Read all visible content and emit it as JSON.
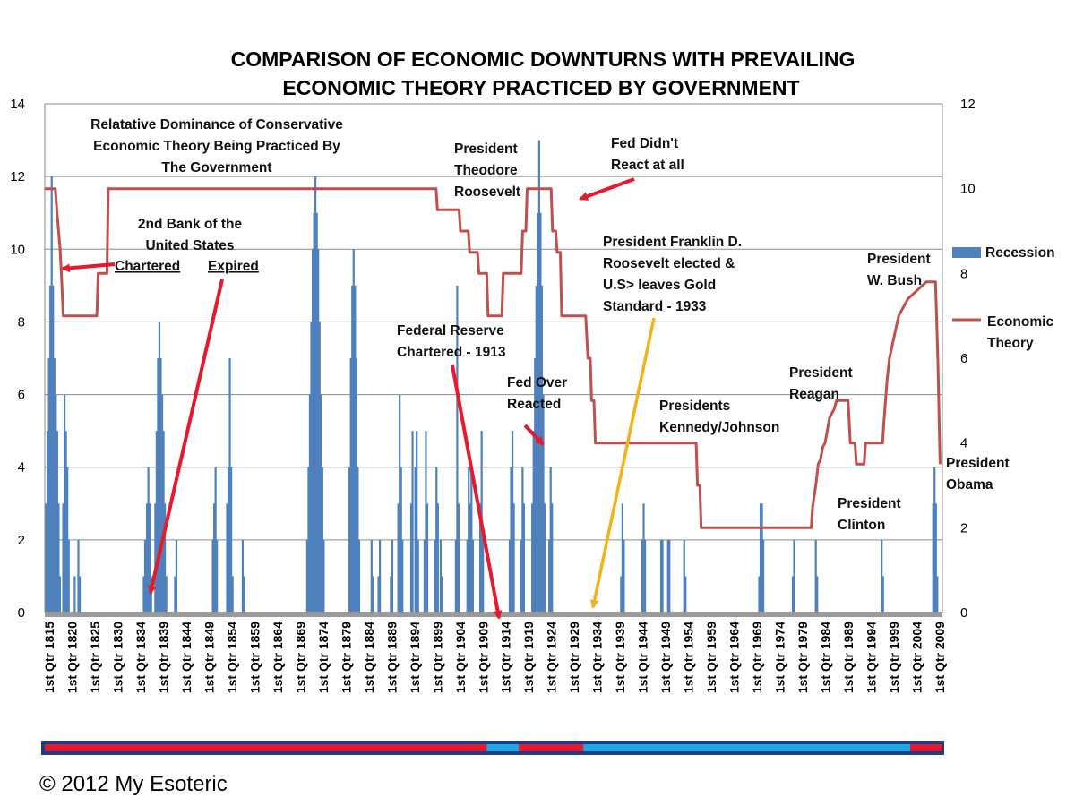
{
  "chart_data": {
    "type": "bar",
    "title_lines": [
      "COMPARISON OF ECONOMIC DOWNTURNS WITH PREVAILING",
      "ECONOMIC THEORY PRACTICED BY GOVERNMENT"
    ],
    "xlabel": "",
    "ylabel_left": "",
    "ylabel_right": "",
    "ylim_left": [
      0,
      14
    ],
    "ylim_right": [
      0,
      12
    ],
    "yticks_left": [
      0,
      2,
      4,
      6,
      8,
      10,
      12,
      14
    ],
    "yticks_right": [
      0,
      2,
      4,
      6,
      8,
      10,
      12
    ],
    "grid": true,
    "x_range": [
      1815,
      2010
    ],
    "x_tick_labels": [
      "1st Qtr 1815",
      "1st Qtr 1820",
      "1st Qtr 1825",
      "1st Qtr 1830",
      "1st Qtr 1834",
      "1st Qtr 1839",
      "1st Qtr 1844",
      "1st Qtr 1849",
      "1st Qtr 1854",
      "1st Qtr 1859",
      "1st Qtr 1864",
      "1st Qtr 1869",
      "1st Qtr 1874",
      "1st Qtr 1879",
      "1st Qtr 1884",
      "1st Qtr 1889",
      "1st Qtr 1894",
      "1st Qtr 1899",
      "1st Qtr 1904",
      "1st Qtr 1909",
      "1st Qtr 1914",
      "1st Qtr 1919",
      "1st Qtr 1924",
      "1st Qtr 1929",
      "1st Qtr 1934",
      "1st Qtr 1939",
      "1st Qtr 1944",
      "1st Qtr 1949",
      "1st Qtr 1954",
      "1st Qtr 1959",
      "1st Qtr 1964",
      "1st Qtr 1969",
      "1st Qtr 1974",
      "1st Qtr 1979",
      "1st Qtr 1984",
      "1st Qtr 1989",
      "1st Qtr 1994",
      "1st Qtr 1999",
      "1st Qtr 2004",
      "1st Qtr 2009"
    ],
    "legend_placement": "right",
    "series": [
      {
        "name": "Recession",
        "type": "bar",
        "color": "#4f81bd",
        "axis": "left",
        "points": [
          [
            1815.3,
            3
          ],
          [
            1815.6,
            5
          ],
          [
            1815.9,
            7
          ],
          [
            1816.2,
            9
          ],
          [
            1816.5,
            12
          ],
          [
            1816.8,
            9
          ],
          [
            1817.1,
            7
          ],
          [
            1817.4,
            6
          ],
          [
            1817.7,
            5
          ],
          [
            1818.0,
            3
          ],
          [
            1818.3,
            1
          ],
          [
            1819.0,
            3
          ],
          [
            1819.3,
            6
          ],
          [
            1819.6,
            5
          ],
          [
            1819.9,
            4
          ],
          [
            1820.2,
            2
          ],
          [
            1821.5,
            1
          ],
          [
            1822.3,
            2
          ],
          [
            1822.6,
            1
          ],
          [
            1836.5,
            1
          ],
          [
            1836.8,
            2
          ],
          [
            1837.2,
            3
          ],
          [
            1837.5,
            4
          ],
          [
            1837.8,
            3
          ],
          [
            1838.1,
            1
          ],
          [
            1839.0,
            3
          ],
          [
            1839.3,
            5
          ],
          [
            1839.6,
            7
          ],
          [
            1839.9,
            8
          ],
          [
            1840.2,
            7
          ],
          [
            1840.5,
            6
          ],
          [
            1840.8,
            5
          ],
          [
            1841.1,
            3
          ],
          [
            1841.4,
            1
          ],
          [
            1843.3,
            1
          ],
          [
            1843.6,
            2
          ],
          [
            1851.5,
            2
          ],
          [
            1851.8,
            3
          ],
          [
            1852.1,
            4
          ],
          [
            1852.4,
            2
          ],
          [
            1854.6,
            3
          ],
          [
            1854.9,
            4
          ],
          [
            1855.2,
            7
          ],
          [
            1855.5,
            4
          ],
          [
            1855.8,
            1
          ],
          [
            1858.0,
            2
          ],
          [
            1858.3,
            1
          ],
          [
            1872.0,
            2
          ],
          [
            1872.3,
            4
          ],
          [
            1872.6,
            6
          ],
          [
            1872.9,
            8
          ],
          [
            1873.2,
            10
          ],
          [
            1873.5,
            11
          ],
          [
            1873.8,
            12
          ],
          [
            1874.1,
            11
          ],
          [
            1874.4,
            10
          ],
          [
            1874.7,
            8
          ],
          [
            1875.0,
            6
          ],
          [
            1875.3,
            4
          ],
          [
            1875.6,
            2
          ],
          [
            1881.2,
            4
          ],
          [
            1881.5,
            7
          ],
          [
            1881.8,
            9
          ],
          [
            1882.1,
            10
          ],
          [
            1882.4,
            9
          ],
          [
            1882.7,
            7
          ],
          [
            1883.0,
            4
          ],
          [
            1883.3,
            2
          ],
          [
            1886.0,
            2
          ],
          [
            1886.3,
            1
          ],
          [
            1887.5,
            1
          ],
          [
            1887.8,
            2
          ],
          [
            1890.2,
            1
          ],
          [
            1890.5,
            2
          ],
          [
            1891.8,
            3
          ],
          [
            1892.1,
            6
          ],
          [
            1892.4,
            4
          ],
          [
            1892.7,
            2
          ],
          [
            1894.6,
            3
          ],
          [
            1894.9,
            5
          ],
          [
            1895.5,
            4
          ],
          [
            1895.8,
            5
          ],
          [
            1896.1,
            2
          ],
          [
            1897.5,
            2
          ],
          [
            1897.8,
            5
          ],
          [
            1898.1,
            3
          ],
          [
            1899.8,
            2
          ],
          [
            1900.1,
            4
          ],
          [
            1900.4,
            3
          ],
          [
            1901.0,
            2
          ],
          [
            1901.3,
            1
          ],
          [
            1904.3,
            2
          ],
          [
            1904.6,
            9
          ],
          [
            1904.9,
            3
          ],
          [
            1906.8,
            2
          ],
          [
            1907.1,
            4
          ],
          [
            1907.4,
            3
          ],
          [
            1907.7,
            4
          ],
          [
            1908.0,
            2
          ],
          [
            1909.6,
            3
          ],
          [
            1909.9,
            5
          ],
          [
            1910.2,
            2
          ],
          [
            1916.0,
            2
          ],
          [
            1916.3,
            4
          ],
          [
            1916.6,
            5
          ],
          [
            1916.9,
            3
          ],
          [
            1918.5,
            2
          ],
          [
            1918.8,
            4
          ],
          [
            1919.1,
            3
          ],
          [
            1920.9,
            3
          ],
          [
            1921.2,
            5
          ],
          [
            1921.5,
            7
          ],
          [
            1921.8,
            9
          ],
          [
            1922.1,
            11
          ],
          [
            1922.4,
            13
          ],
          [
            1922.7,
            11
          ],
          [
            1923.0,
            9
          ],
          [
            1923.3,
            6
          ],
          [
            1923.6,
            3
          ],
          [
            1924.6,
            2
          ],
          [
            1924.9,
            4
          ],
          [
            1925.2,
            3
          ],
          [
            1940.2,
            1
          ],
          [
            1940.5,
            3
          ],
          [
            1940.8,
            2
          ],
          [
            1944.8,
            2
          ],
          [
            1945.1,
            3
          ],
          [
            1945.4,
            2
          ],
          [
            1948.9,
            2
          ],
          [
            1949.2,
            2
          ],
          [
            1950.4,
            2
          ],
          [
            1950.7,
            2
          ],
          [
            1953.9,
            2
          ],
          [
            1954.2,
            1
          ],
          [
            1970.2,
            1
          ],
          [
            1970.5,
            3
          ],
          [
            1970.8,
            3
          ],
          [
            1971.1,
            2
          ],
          [
            1977.5,
            1
          ],
          [
            1977.8,
            2
          ],
          [
            1982.5,
            2
          ],
          [
            1982.8,
            1
          ],
          [
            1996.8,
            2
          ],
          [
            1997.1,
            1
          ],
          [
            2008.0,
            3
          ],
          [
            2008.3,
            4
          ],
          [
            2008.6,
            3
          ],
          [
            2008.9,
            1
          ]
        ]
      },
      {
        "name": "Economic Theory",
        "type": "line",
        "color": "#c0504d",
        "axis": "right",
        "points": [
          [
            1815,
            10
          ],
          [
            1817.3,
            10
          ],
          [
            1817.6,
            9.5
          ],
          [
            1818.0,
            9
          ],
          [
            1818.3,
            8.6
          ],
          [
            1818.6,
            8
          ],
          [
            1819.0,
            7
          ],
          [
            1821.0,
            7
          ],
          [
            1826.3,
            7
          ],
          [
            1826.6,
            8
          ],
          [
            1828.5,
            8
          ],
          [
            1828.8,
            10
          ],
          [
            1900.0,
            10
          ],
          [
            1900.3,
            9.5
          ],
          [
            1905.0,
            9.5
          ],
          [
            1905.3,
            9
          ],
          [
            1907.0,
            9
          ],
          [
            1907.3,
            8.5
          ],
          [
            1909.0,
            8.5
          ],
          [
            1909.3,
            8
          ],
          [
            1911.0,
            8
          ],
          [
            1911.3,
            7
          ],
          [
            1914.3,
            7
          ],
          [
            1914.6,
            8
          ],
          [
            1918.5,
            8
          ],
          [
            1918.8,
            9
          ],
          [
            1919.5,
            9
          ],
          [
            1919.8,
            10
          ],
          [
            1925.0,
            10
          ],
          [
            1925.3,
            9
          ],
          [
            1926.0,
            9
          ],
          [
            1926.3,
            8.5
          ],
          [
            1927.0,
            8.5
          ],
          [
            1927.3,
            7
          ],
          [
            1932.5,
            7
          ],
          [
            1933.0,
            6
          ],
          [
            1933.5,
            6
          ],
          [
            1933.8,
            5
          ],
          [
            1934.3,
            5
          ],
          [
            1934.6,
            4
          ],
          [
            1956.5,
            4
          ],
          [
            1956.8,
            3
          ],
          [
            1957.3,
            3
          ],
          [
            1957.6,
            2
          ],
          [
            1981.5,
            2
          ],
          [
            1981.8,
            2.5
          ],
          [
            1982.5,
            3
          ],
          [
            1983.0,
            3.5
          ],
          [
            1983.5,
            3.6
          ],
          [
            1984.0,
            3.9
          ],
          [
            1984.5,
            4
          ],
          [
            1985.0,
            4.3
          ],
          [
            1985.5,
            4.6
          ],
          [
            1986.0,
            4.7
          ],
          [
            1986.5,
            4.8
          ],
          [
            1987.0,
            5
          ],
          [
            1989.5,
            5
          ],
          [
            1990.0,
            4
          ],
          [
            1991.0,
            4
          ],
          [
            1991.3,
            3.5
          ],
          [
            1993.0,
            3.5
          ],
          [
            1993.3,
            4
          ],
          [
            1997.0,
            4
          ],
          [
            1997.3,
            4.5
          ],
          [
            1998.0,
            5.5
          ],
          [
            1998.5,
            6
          ],
          [
            1999.5,
            6.5
          ],
          [
            2000.5,
            7
          ],
          [
            2001.5,
            7.2
          ],
          [
            2002.5,
            7.4
          ],
          [
            2003.5,
            7.5
          ],
          [
            2004.5,
            7.6
          ],
          [
            2005.5,
            7.7
          ],
          [
            2006.5,
            7.8
          ],
          [
            2008.5,
            7.8
          ],
          [
            2009.0,
            6
          ],
          [
            2009.5,
            3.5
          ]
        ]
      }
    ],
    "annotations": [
      {
        "lines": [
          "Relatative Dominance of Conservative",
          "Economic Theory Being Practiced By",
          "The Government"
        ],
        "anchor": "middle"
      },
      {
        "lines": [
          "2nd Bank of  the",
          "United States"
        ],
        "anchor": "middle"
      },
      {
        "lines": [
          "Chartered"
        ],
        "anchor": "start",
        "underline": true
      },
      {
        "lines": [
          "Expired"
        ],
        "anchor": "start",
        "underline": true
      },
      {
        "lines": [
          "President",
          "Theodore",
          "Roosevelt"
        ],
        "anchor": "start"
      },
      {
        "lines": [
          "Fed  Didn't",
          "React at all"
        ],
        "anchor": "start"
      },
      {
        "lines": [
          "President Franklin D.",
          "Roosevelt elected &",
          "U.S> leaves Gold",
          "Standard - 1933"
        ],
        "anchor": "start"
      },
      {
        "lines": [
          "Federal  Reserve",
          "Chartered - 1913"
        ],
        "anchor": "start"
      },
      {
        "lines": [
          "Fed Over",
          "Reacted"
        ],
        "anchor": "start"
      },
      {
        "lines": [
          "Presidents",
          "Kennedy/Johnson"
        ],
        "anchor": "start"
      },
      {
        "lines": [
          "President",
          "Reagan"
        ],
        "anchor": "start"
      },
      {
        "lines": [
          "President",
          "Clinton"
        ],
        "anchor": "start"
      },
      {
        "lines": [
          "President",
          "W. Bush"
        ],
        "anchor": "start"
      },
      {
        "lines": [
          "President",
          "Obama"
        ],
        "anchor": "start"
      }
    ],
    "legend_labels": [
      {
        "series": "Recession",
        "lines": [
          "Recession"
        ]
      },
      {
        "series": "Economic Theory",
        "lines": [
          "Economic",
          "Theory"
        ]
      }
    ],
    "color_band": {
      "border": "#1f3c88",
      "segments": [
        {
          "from": 1815,
          "to": 1911,
          "color": "#e8192c"
        },
        {
          "from": 1911,
          "to": 1918,
          "color": "#1fa8e6"
        },
        {
          "from": 1918,
          "to": 1932,
          "color": "#e8192c"
        },
        {
          "from": 1932,
          "to": 2003,
          "color": "#1fa8e6"
        },
        {
          "from": 2003,
          "to": 2010,
          "color": "#e8192c"
        }
      ]
    },
    "copyright": "© 2012 My Esoteric"
  }
}
